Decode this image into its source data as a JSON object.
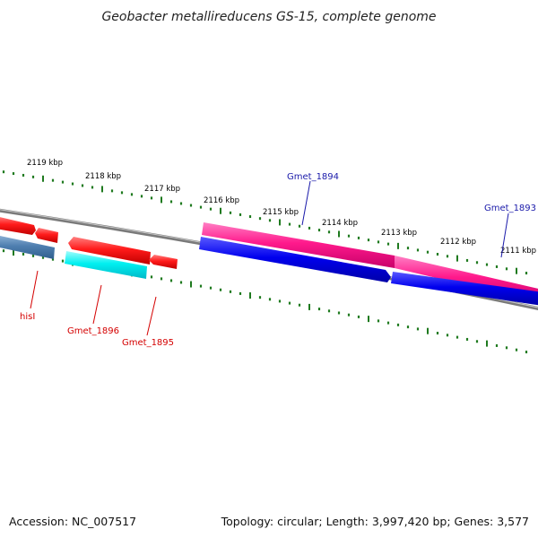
{
  "title": "Geobacter metallireducens GS-15, complete genome",
  "accession_text": "Accession: NC_007517",
  "summary_text": "Topology: circular; Length: 3,997,420 bp; Genes: 3,577",
  "scale": {
    "unit": "kbp",
    "labels": [
      "2119 kbp",
      "2118 kbp",
      "2117 kbp",
      "2116 kbp",
      "2115 kbp",
      "2114 kbp",
      "2113 kbp",
      "2112 kbp",
      "2111 kbp"
    ]
  },
  "genes": [
    {
      "name": "hisI",
      "label": "hisI",
      "color": "#d40000"
    },
    {
      "name": "Gmet_1896",
      "label": "Gmet_1896",
      "color": "#d40000"
    },
    {
      "name": "Gmet_1895",
      "label": "Gmet_1895",
      "color": "#d40000"
    },
    {
      "name": "Gmet_1894",
      "label": "Gmet_1894",
      "color": "#1a1aaa"
    },
    {
      "name": "Gmet_1893",
      "label": "Gmet_1893",
      "color": "#1a1aaa"
    }
  ],
  "colors": {
    "backbone": "#7a7a7a",
    "ticks": "#1f7a1f",
    "red_feature": "#ff1a1a",
    "pink_feature": "#ff1a8c",
    "blue_feature": "#0000ee",
    "steel_feature": "#4f7fb0",
    "cyan_feature": "#00f0f0"
  }
}
